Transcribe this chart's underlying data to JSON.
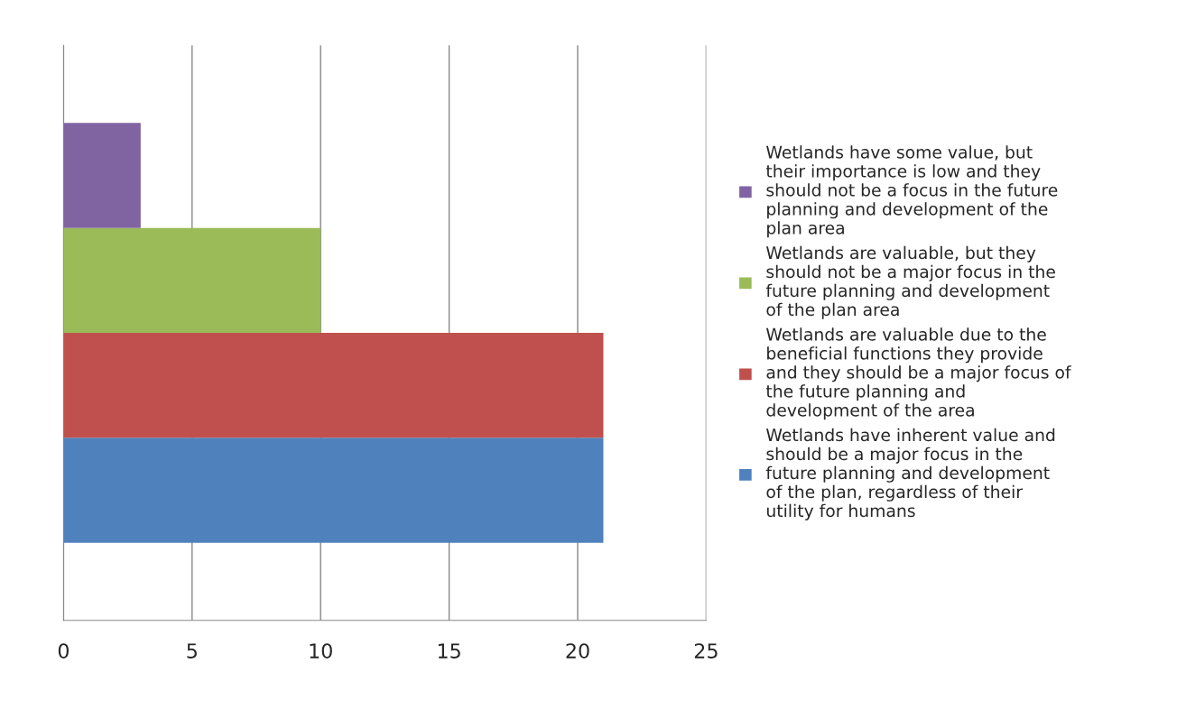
{
  "chart_data": {
    "type": "bar",
    "orientation": "horizontal",
    "categories": [
      null
    ],
    "series": [
      {
        "name": "Wetlands have inherent value and\nshould be a major focus in the\nfuture planning and development\nof the plan, regardless of their\nutility for humans",
        "color": "#4f81bd",
        "values": [
          21
        ]
      },
      {
        "name": "Wetlands are valuable due to the\nbeneficial functions they provide\nand they should be a major focus of\nthe future planning and\ndevelopment of the area",
        "color": "#c0504d",
        "values": [
          21
        ]
      },
      {
        "name": "Wetlands are valuable, but they\nshould not be a major focus in the\nfuture planning and development\nof the plan area",
        "color": "#9bbb59",
        "values": [
          10
        ]
      },
      {
        "name": "Wetlands have some value, but\ntheir importance is low and they\nshould not be a focus in the future\nplanning and development of the\nplan area",
        "color": "#8064a2",
        "values": [
          3
        ]
      }
    ],
    "xlim": [
      0,
      25
    ],
    "xticks": [
      0,
      5,
      10,
      15,
      20,
      25
    ],
    "grid": "x",
    "legend": "right"
  }
}
